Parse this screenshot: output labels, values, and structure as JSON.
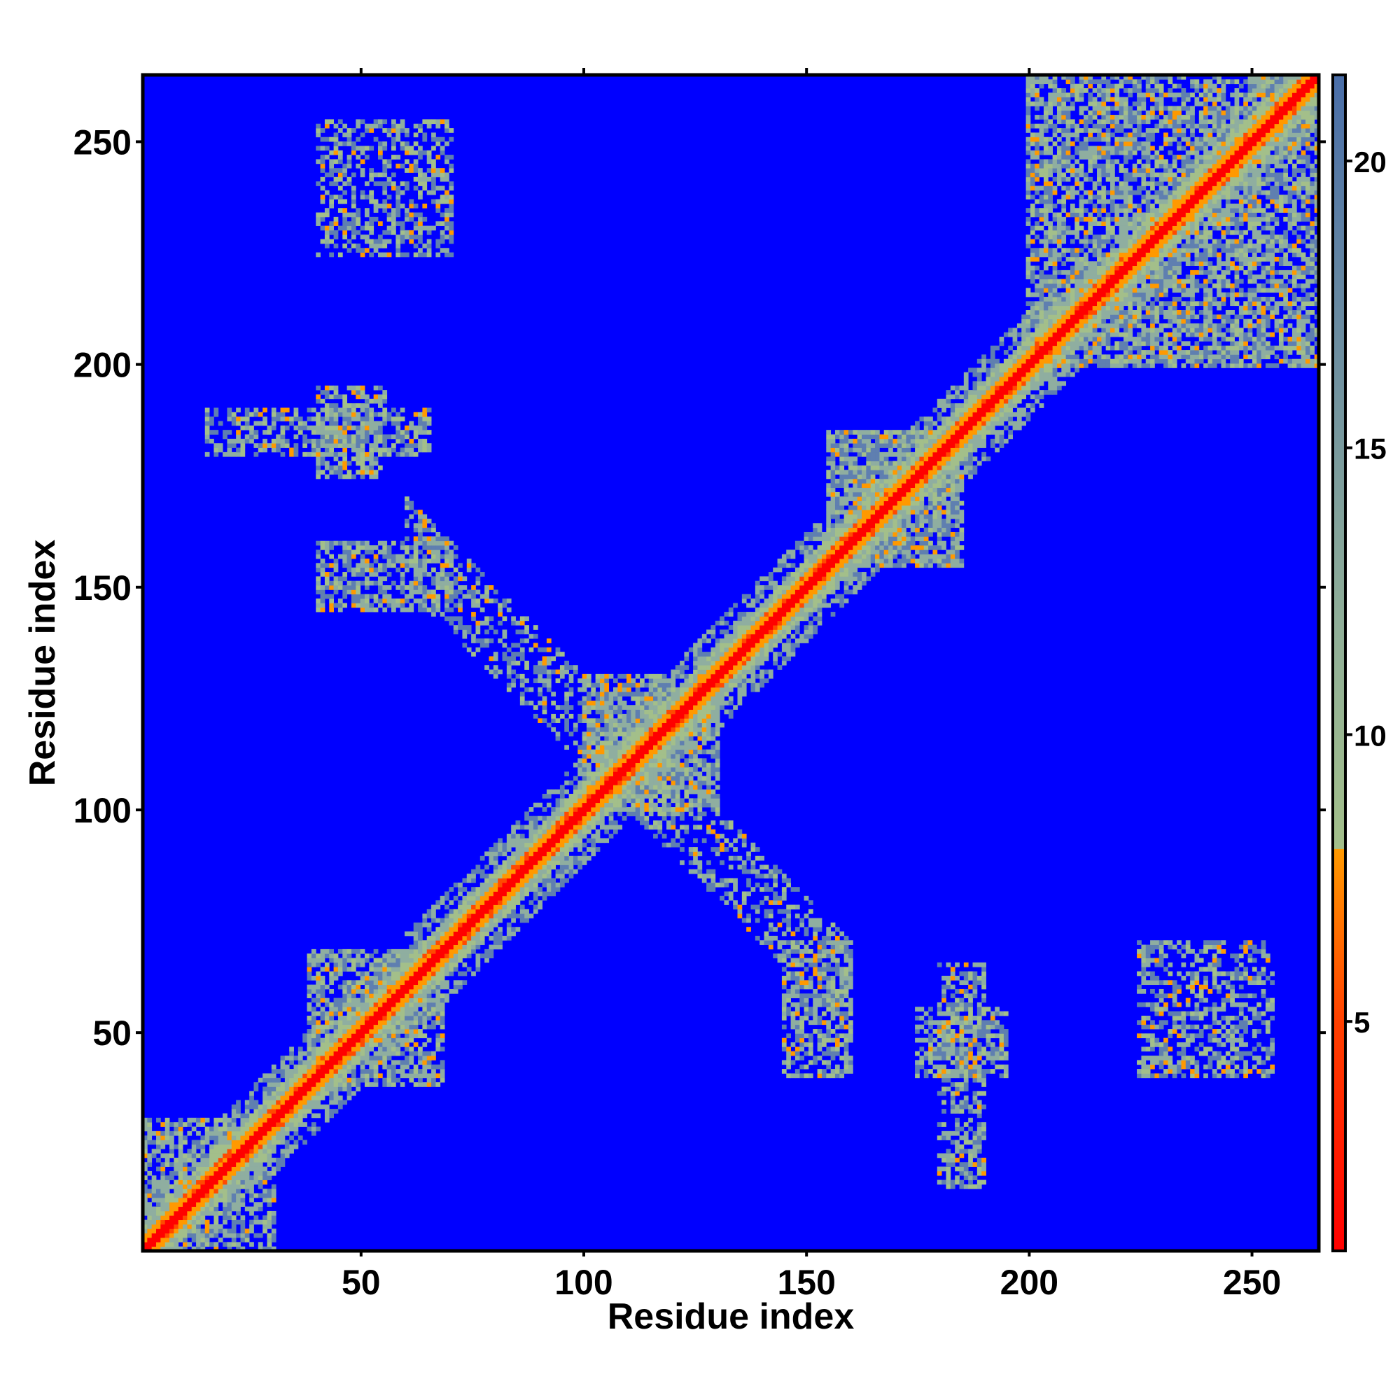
{
  "chart_data": {
    "type": "heatmap",
    "title": "",
    "xlabel": "Residue index",
    "ylabel": "Residue index",
    "xlim": [
      1,
      265
    ],
    "ylim": [
      1,
      265
    ],
    "x_ticks": [
      50,
      100,
      150,
      200,
      250
    ],
    "y_ticks": [
      50,
      100,
      150,
      200,
      250
    ],
    "colorbar": {
      "range": [
        1,
        21.5
      ],
      "ticks": [
        5,
        10,
        15,
        20
      ],
      "stops": [
        {
          "value": 1,
          "color": "#ff0000"
        },
        {
          "value": 5,
          "color": "#ff4000"
        },
        {
          "value": 8,
          "color": "#ff9900"
        },
        {
          "value": 8.01,
          "color": "#a3bf8a"
        },
        {
          "value": 12,
          "color": "#8fae98"
        },
        {
          "value": 21.5,
          "color": "#4a6ea8"
        }
      ],
      "background_color": "#0000ff"
    },
    "n_residues": 265,
    "diagonal_band": {
      "width": 6
    },
    "contact_regions": [
      {
        "x": [
          1,
          30
        ],
        "y": [
          1,
          30
        ],
        "intensity": 0.6
      },
      {
        "x": [
          38,
          68
        ],
        "y": [
          38,
          68
        ],
        "intensity": 0.7
      },
      {
        "x": [
          40,
          70
        ],
        "y": [
          145,
          160
        ],
        "intensity": 0.6
      },
      {
        "x": [
          145,
          160
        ],
        "y": [
          40,
          70
        ],
        "intensity": 0.6
      },
      {
        "x": [
          40,
          55
        ],
        "y": [
          175,
          195
        ],
        "intensity": 0.6
      },
      {
        "x": [
          175,
          195
        ],
        "y": [
          40,
          55
        ],
        "intensity": 0.6
      },
      {
        "x": [
          155,
          185
        ],
        "y": [
          155,
          185
        ],
        "intensity": 0.8
      },
      {
        "x": [
          200,
          265
        ],
        "y": [
          200,
          265
        ],
        "intensity": 0.7
      },
      {
        "x": [
          100,
          130
        ],
        "y": [
          100,
          130
        ],
        "intensity": 0.7
      },
      {
        "x": [
          225,
          255
        ],
        "y": [
          40,
          70
        ],
        "intensity": 0.5
      },
      {
        "x": [
          40,
          70
        ],
        "y": [
          225,
          255
        ],
        "intensity": 0.5
      },
      {
        "x": [
          180,
          190
        ],
        "y": [
          15,
          65
        ],
        "intensity": 0.5
      },
      {
        "x": [
          15,
          65
        ],
        "y": [
          180,
          190
        ],
        "intensity": 0.5
      }
    ],
    "anti_diagonal_band": {
      "from": [
        60,
        160
      ],
      "to": [
        160,
        60
      ],
      "intensity": 0.4
    }
  }
}
